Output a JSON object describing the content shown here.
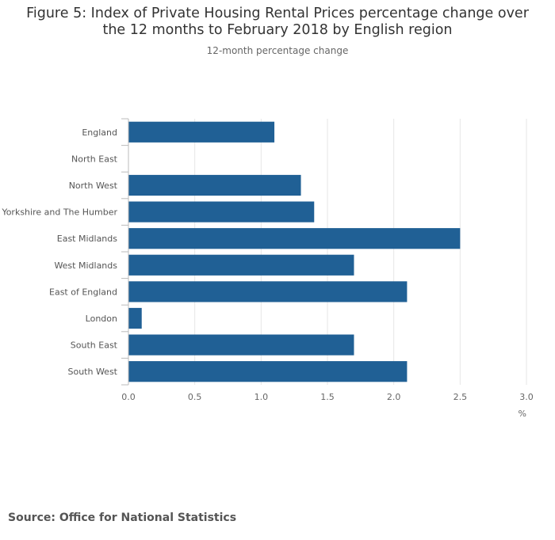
{
  "chart_data": {
    "type": "bar",
    "orientation": "horizontal",
    "title": "Figure 5: Index of Private Housing Rental Prices percentage change over the 12 months to February 2018 by English region",
    "subtitle": "12-month percentage change",
    "xlabel": "%",
    "ylabel": "",
    "categories": [
      "England",
      "North East",
      "North West",
      "Yorkshire and The Humber",
      "East Midlands",
      "West Midlands",
      "East of England",
      "London",
      "South East",
      "South West"
    ],
    "values": [
      1.1,
      0.0,
      1.3,
      1.4,
      2.5,
      1.7,
      2.1,
      0.1,
      1.7,
      2.1
    ],
    "xlim": [
      0,
      3.0
    ],
    "x_ticks": [
      "0.0",
      "0.5",
      "1.0",
      "1.5",
      "2.0",
      "2.5",
      "3.0"
    ],
    "grid": true,
    "legend": "none",
    "bar_color": "#206095",
    "grid_color": "#e6e6e6",
    "source": "Source: Office for National Statistics"
  }
}
